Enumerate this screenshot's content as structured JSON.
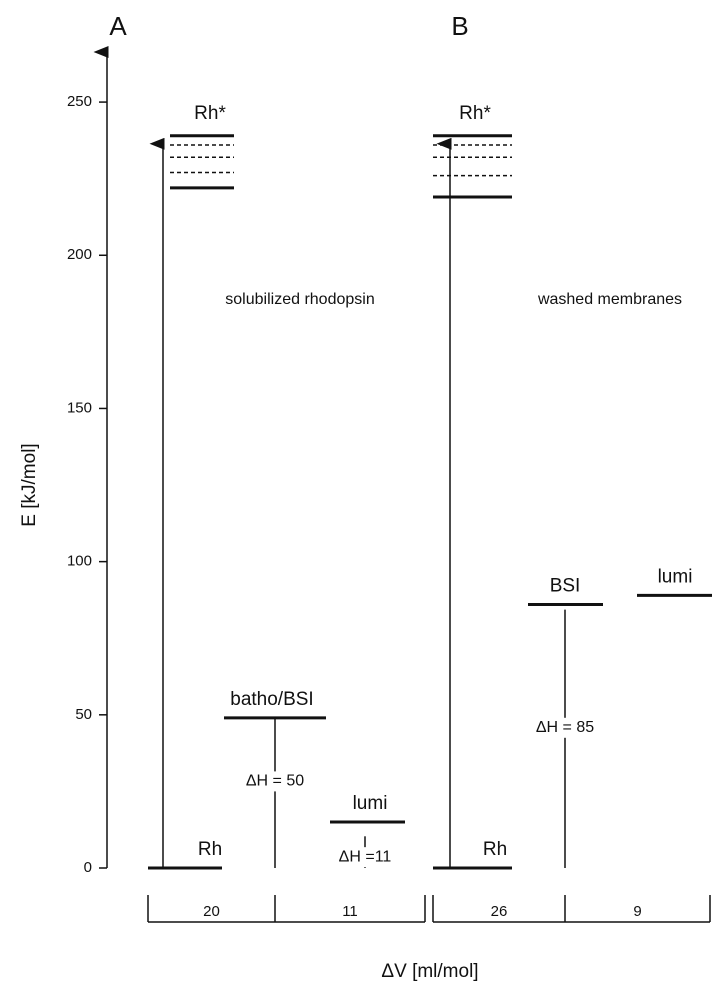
{
  "chart_data": {
    "type": "energy-levels",
    "ylabel": "E [kJ/mol]",
    "xlabel": "ΔV [ml/mol]",
    "ylim": [
      0,
      267
    ],
    "yticks": [
      0,
      50,
      100,
      150,
      200,
      250
    ],
    "panels": [
      {
        "label": "A",
        "annotation": "solubilized  rhodopsin",
        "levels": [
          {
            "name": "Rh",
            "value": 0
          },
          {
            "name": "Rh*",
            "values": [
              222,
              239
            ],
            "sublevels": [
              227,
              232,
              236
            ]
          },
          {
            "name": "batho/BSI",
            "value": 49,
            "delta_h": 50,
            "delta_h_label": "ΔH = 50"
          },
          {
            "name": "lumi",
            "value": 15,
            "delta_h": 11,
            "delta_h_label": "ΔH =11"
          }
        ],
        "delta_v": [
          20,
          11
        ]
      },
      {
        "label": "B",
        "annotation": "washed membranes",
        "levels": [
          {
            "name": "Rh",
            "value": 0
          },
          {
            "name": "Rh*",
            "values": [
              219,
              239
            ],
            "sublevels": [
              226,
              232,
              236
            ]
          },
          {
            "name": "BSI",
            "value": 86,
            "delta_h": 85,
            "delta_h_label": "ΔH = 85"
          },
          {
            "name": "lumi",
            "value": 89
          }
        ],
        "delta_v": [
          26,
          9
        ]
      }
    ]
  }
}
